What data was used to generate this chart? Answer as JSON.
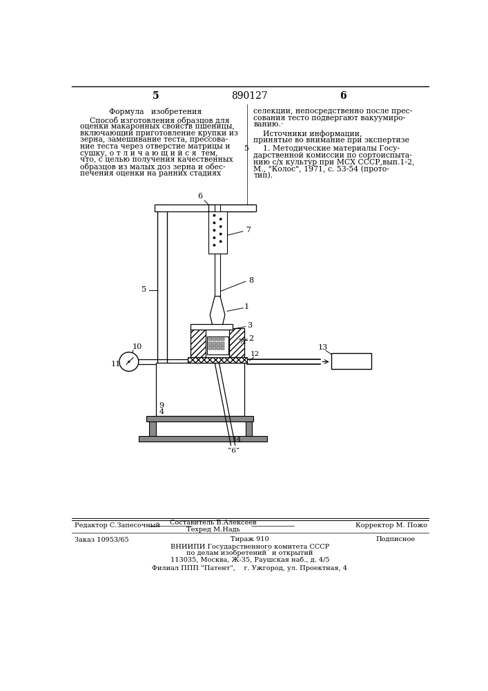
{
  "page_number_left": "5",
  "page_number_center": "890127",
  "page_number_right": "6",
  "left_column_title": "Формула   изобретения",
  "left_column_text_lines": [
    "    Способ изготовления образцов для",
    "оценки макаронных свойств пшеницы,",
    "включающий приготовление крупки из",
    "зерна, замешивание теста, прессова-",
    "ние теста через отверстие матрицы и",
    "сушку, о т л и ч а ю щ и й с я  тем,",
    "что, с целью получения качественных",
    "образцов из малых доз зерна и обес-",
    "печения оценки на ранних стадиях"
  ],
  "right_col_lines1": [
    "селекции, непосредственно после прес-",
    "сования тесто подвергают вакуумиро-",
    "ванию.·"
  ],
  "right_col_src_title": "    Источники информации,",
  "right_col_src_title2": "принятые во внимание при экспертизе",
  "right_col_ref_lines": [
    "    1. Методические материалы Госу-",
    "дарственной комиссии по сортоиспыта-",
    "нию с/х культур при МСХ СССР,вып.1-2,",
    "М., \"Колос\", 1971, с. 53-54 (прото-",
    "тип)."
  ],
  "footer_editor": "Редактор С.Запесочный",
  "footer_composer": "Составитель В.Алексеев",
  "footer_corrector": "Корректор М. Пожо",
  "footer_techred": "Техред М.Надь",
  "footer_order": "Заказ 10953/65",
  "footer_tirazh": "Тираж 910",
  "footer_podp": "Подписное",
  "footer_vnipi": "ВНИИПИ Государственного комитета СССР",
  "footer_po_delam": "по делам изобретений´ и открытий",
  "footer_addr": "113035, Москва, Ж-35, Раушская наб., д. 4/5",
  "footer_filial": "Филиал ППП \"Патент\",    г. Ужгород, ул. Проектная, 4",
  "bg_color": "#ffffff",
  "text_color": "#000000",
  "font_size_body": 7.8,
  "font_size_footer": 7.0
}
